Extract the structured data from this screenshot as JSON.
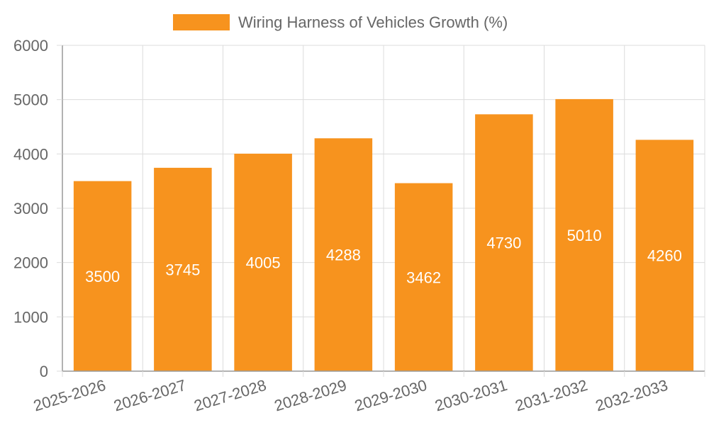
{
  "chart_data": {
    "type": "bar",
    "categories": [
      "2025-2026",
      "2026-2027",
      "2027-2028",
      "2028-2029",
      "2029-2030",
      "2030-2031",
      "2031-2032",
      "2032-2033"
    ],
    "series": [
      {
        "name": "Wiring Harness of Vehicles Growth (%)",
        "values": [
          3500,
          3745,
          4005,
          4288,
          3462,
          4730,
          5010,
          4260
        ],
        "color": "#f7931e"
      }
    ],
    "ylim": [
      0,
      6000
    ],
    "yticks": [
      "0",
      "1000",
      "2000",
      "3000",
      "4000",
      "5000",
      "6000"
    ],
    "grid": true,
    "legend_position": "top-center",
    "data_labels": true
  }
}
